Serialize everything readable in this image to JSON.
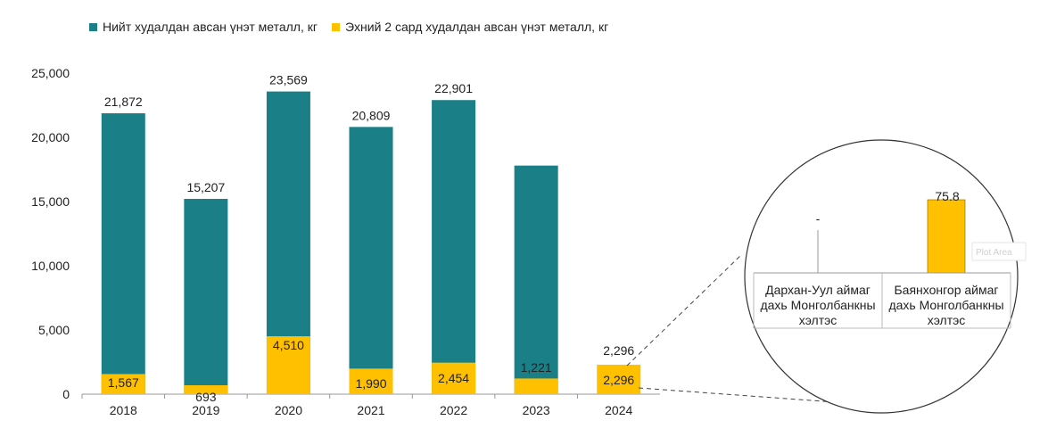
{
  "chart_data": [
    {
      "type": "bar",
      "stacked": false,
      "categories": [
        "2018",
        "2019",
        "2020",
        "2021",
        "2022",
        "2023",
        "2024"
      ],
      "series": [
        {
          "name": "Нийт худалдан авсан үнэт металл, кг",
          "color": "#1A7F86",
          "values": [
            21872,
            15207,
            23569,
            20809,
            22901,
            17800,
            null
          ],
          "labels": [
            "21,872",
            "15,207",
            "23,569",
            "20,809",
            "22,901",
            "",
            ""
          ]
        },
        {
          "name": "Эхний 2 сард худалдан авсан үнэт металл, кг",
          "color": "#FFC000",
          "values": [
            1567,
            693,
            4510,
            1990,
            2454,
            1221,
            2296
          ],
          "labels": [
            "1,567",
            "693",
            "4,510",
            "1,990",
            "2,454",
            "1,221",
            "2,296"
          ]
        }
      ],
      "extra_labels": [
        {
          "category": "2024",
          "text": "2,296"
        }
      ],
      "yticks": [
        "0",
        "5,000",
        "10,000",
        "15,000",
        "20,000",
        "25,000"
      ],
      "ylim": [
        0,
        25000
      ],
      "grid": false,
      "legend_position": "top-left"
    },
    {
      "type": "bar",
      "categories": [
        "Дархан-Уул аймаг дахь Монголбанкны хэлтэс",
        "Баянхонгор аймаг дахь Монголбанкны хэлтэс"
      ],
      "values": [
        0,
        75.8
      ],
      "labels": [
        "-",
        "75.8"
      ],
      "color": "#FFC000",
      "watermark": "Plot Area"
    }
  ]
}
